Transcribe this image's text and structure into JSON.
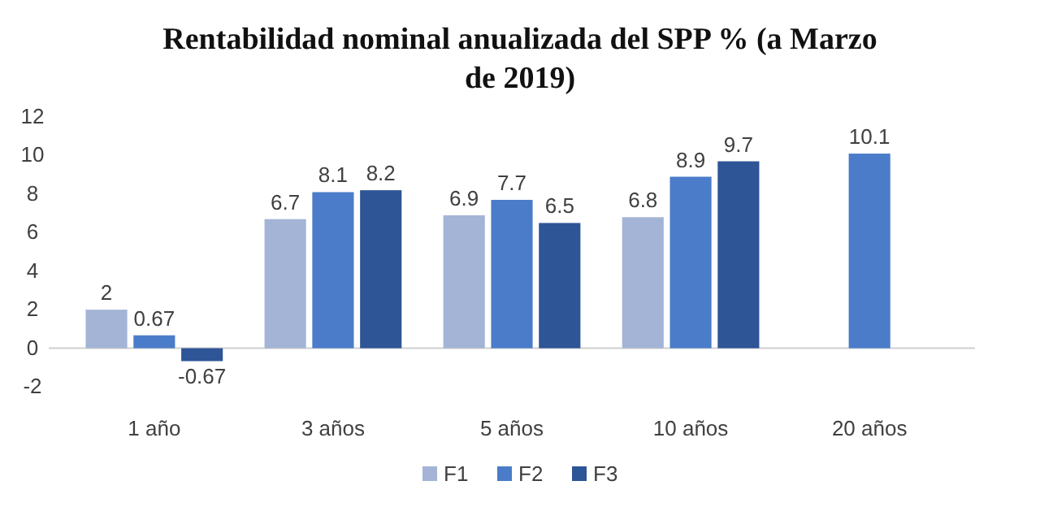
{
  "chart_data": {
    "type": "bar",
    "title": "Rentabilidad nominal anualizada del SPP % (a Marzo de 2019)",
    "categories": [
      "1 año",
      "3 años",
      "5 años",
      "10 años",
      "20 años"
    ],
    "series": [
      {
        "name": "F1",
        "color": "#a3b4d6",
        "values": [
          2,
          6.7,
          6.9,
          6.8,
          null
        ]
      },
      {
        "name": "F2",
        "color": "#4a7cc9",
        "values": [
          0.67,
          8.1,
          7.7,
          8.9,
          10.1
        ]
      },
      {
        "name": "F3",
        "color": "#2e5596",
        "values": [
          -0.67,
          8.2,
          6.5,
          9.7,
          null
        ]
      }
    ],
    "ylim": [
      -2,
      12
    ],
    "yticks": [
      -2,
      0,
      2,
      4,
      6,
      8,
      10,
      12
    ],
    "data_labels": true,
    "legend": "bottom"
  }
}
